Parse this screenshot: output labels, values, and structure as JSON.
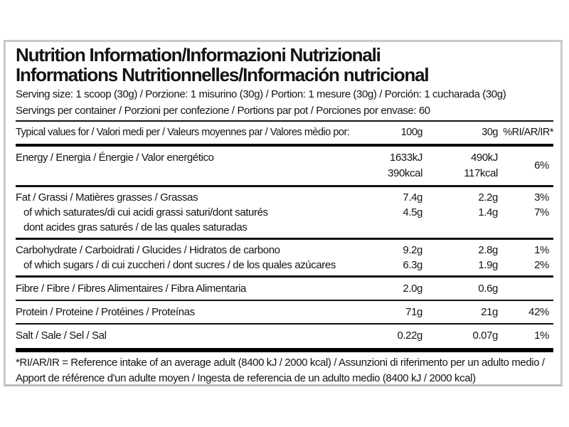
{
  "colors": {
    "text": "#141414",
    "border": "#c9c9c9",
    "rule": "#111111",
    "thick_bar": "#000000"
  },
  "title": {
    "line1": "Nutrition Information/Informazioni Nutrizionali",
    "line2": "Informations Nutritionnelles/Información nutricional"
  },
  "serving": {
    "size": "Serving size: 1 scoop (30g) / Porzione: 1 misurino (30g) / Portion: 1 mesure (30g) / Porción: 1 cucharada (30g)",
    "per_container": "Servings per container / Porzioni per confezione / Portions par pot / Porciones por envase: 60"
  },
  "table": {
    "header": {
      "label": "Typical values for / Valori medi per / Valeurs moyennes par / Valores mèdio por:",
      "col_100g": "100g",
      "col_30g": "30g",
      "col_ri": "%RI/AR/IR*"
    },
    "rows": [
      {
        "id": "energy",
        "label_lines": [
          {
            "text": "Energy / Energia / Énergie / Valor energético",
            "indent": false
          }
        ],
        "v100": [
          "1633kJ",
          "390kcal"
        ],
        "v30": [
          "490kJ",
          "117kcal"
        ],
        "ri": [
          "6%"
        ],
        "ri_center": true,
        "divider": "med"
      },
      {
        "id": "fat",
        "label_lines": [
          {
            "text": "Fat / Grassi / Matières grasses / Grassas",
            "indent": false
          },
          {
            "text": "of which saturates/di cui acidi grassi saturi/dont saturés",
            "indent": true
          },
          {
            "text": "dont acides gras saturés / de las quales saturadas",
            "indent": true
          }
        ],
        "v100": [
          "7.4g",
          "4.5g"
        ],
        "v30": [
          "2.2g",
          "1.4g"
        ],
        "ri": [
          "3%",
          "7%"
        ],
        "ri_center": false,
        "divider": "med"
      },
      {
        "id": "carbohydrate",
        "label_lines": [
          {
            "text": "Carbohydrate / Carboidrati / Glucides / Hidratos de carbono",
            "indent": false
          },
          {
            "text": "of which sugars / di cui zuccheri / dont sucres / de los quales azúcares",
            "indent": true
          }
        ],
        "v100": [
          "9.2g",
          "6.3g"
        ],
        "v30": [
          "2.8g",
          "1.9g"
        ],
        "ri": [
          "1%",
          "2%"
        ],
        "ri_center": false,
        "divider": "med"
      },
      {
        "id": "fibre",
        "label_lines": [
          {
            "text": "Fibre / Fibre / Fibres Alimentaires / Fibra Alimentaria",
            "indent": false
          }
        ],
        "v100": [
          "2.0g"
        ],
        "v30": [
          "0.6g"
        ],
        "ri": [],
        "ri_center": false,
        "divider": "thin"
      },
      {
        "id": "protein",
        "label_lines": [
          {
            "text": "Protein / Proteine / Protéines / Proteínas",
            "indent": false
          }
        ],
        "v100": [
          "71g"
        ],
        "v30": [
          "21g"
        ],
        "ri": [
          "42%"
        ],
        "ri_center": false,
        "divider": "thin"
      },
      {
        "id": "salt",
        "label_lines": [
          {
            "text": "Salt / Sale / Sel / Sal",
            "indent": false
          }
        ],
        "v100": [
          "0.22g"
        ],
        "v30": [
          "0.07g"
        ],
        "ri": [
          "1%"
        ],
        "ri_center": false,
        "divider": "bar"
      }
    ]
  },
  "footnote": "*RI/AR/IR = Reference intake of an average adult (8400 kJ / 2000 kcal) / Assunzioni di riferimento per un adulto medio / Apport de référence d'un adulte moyen / Ingesta de referencia de un adulto medio (8400 kJ / 2000 kcal)"
}
